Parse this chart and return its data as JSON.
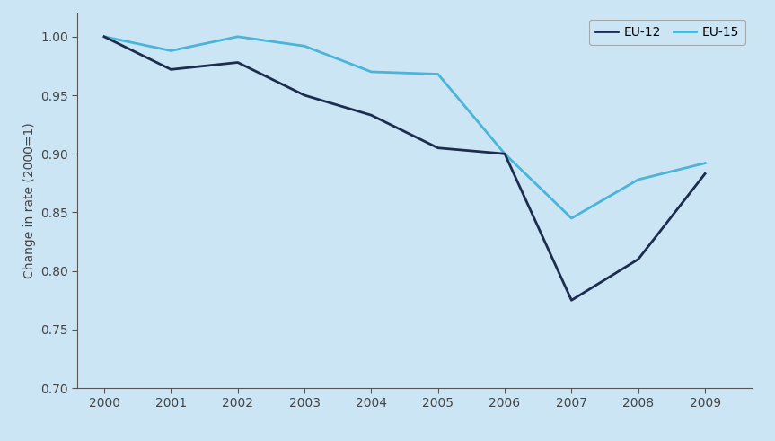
{
  "years": [
    2000,
    2001,
    2002,
    2003,
    2004,
    2005,
    2006,
    2007,
    2008,
    2009
  ],
  "eu12": [
    1.0,
    0.972,
    0.978,
    0.95,
    0.933,
    0.905,
    0.9,
    0.775,
    0.81,
    0.883
  ],
  "eu15": [
    1.0,
    0.988,
    1.0,
    0.992,
    0.97,
    0.968,
    0.9,
    0.845,
    0.878,
    0.892
  ],
  "eu12_color": "#1c2d4e",
  "eu15_color": "#4ab5d8",
  "background_color": "#cce5f5",
  "ylabel": "Change in rate (2000=1)",
  "ylim": [
    0.7,
    1.02
  ],
  "yticks": [
    0.7,
    0.75,
    0.8,
    0.85,
    0.9,
    0.95,
    1.0
  ],
  "legend_labels": [
    "EU-12",
    "EU-15"
  ],
  "line_width": 2.0,
  "spine_color": "#555555",
  "tick_color": "#444444",
  "label_color": "#444444"
}
